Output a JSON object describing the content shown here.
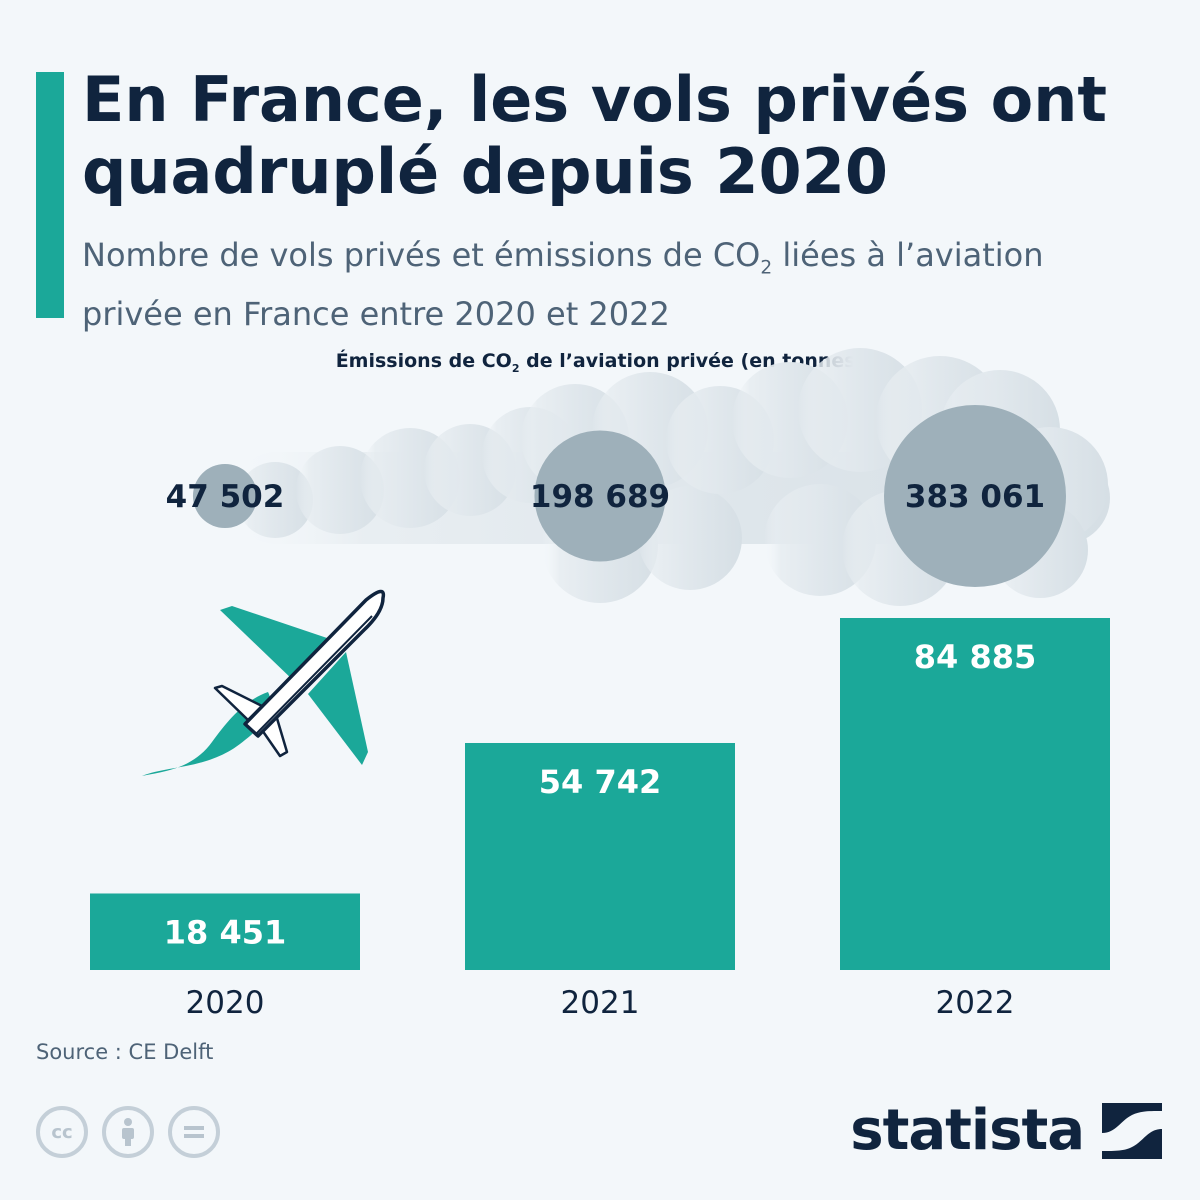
{
  "header": {
    "title": "En France, les vols privés ont quadruplé depuis 2020",
    "subtitle_before": "Nombre de vols privés et émissions de CO",
    "subtitle_sub": "2",
    "subtitle_after": " liées à l’aviation privée en France entre 2020 et 2022"
  },
  "emissions": {
    "title_before": "Émissions de CO",
    "title_sub": "2",
    "title_after": " de l’aviation privée (en tonnes)"
  },
  "chart_data": {
    "type": "bar",
    "categories": [
      "2020",
      "2021",
      "2022"
    ],
    "series": [
      {
        "values": [
          18451,
          54742,
          84885
        ],
        "labels": [
          "18 451",
          "54 742",
          "84 885"
        ],
        "color": "#1ba899"
      }
    ],
    "bubbles": {
      "values": [
        47502,
        198689,
        383061
      ],
      "labels": [
        "47 502",
        "198 689",
        "383 061"
      ],
      "color": "#9eb0ba"
    }
  },
  "footer": {
    "source": "Source : CE Delft",
    "brand": "statista",
    "license_icons": [
      "cc-icon",
      "attribution-icon",
      "no-derivatives-icon"
    ]
  },
  "colors": {
    "accent": "#1ba899",
    "title": "#10243e",
    "subtitle": "#4e6377",
    "smoke": "#d8e1e7",
    "background": "#f3f7fa"
  }
}
